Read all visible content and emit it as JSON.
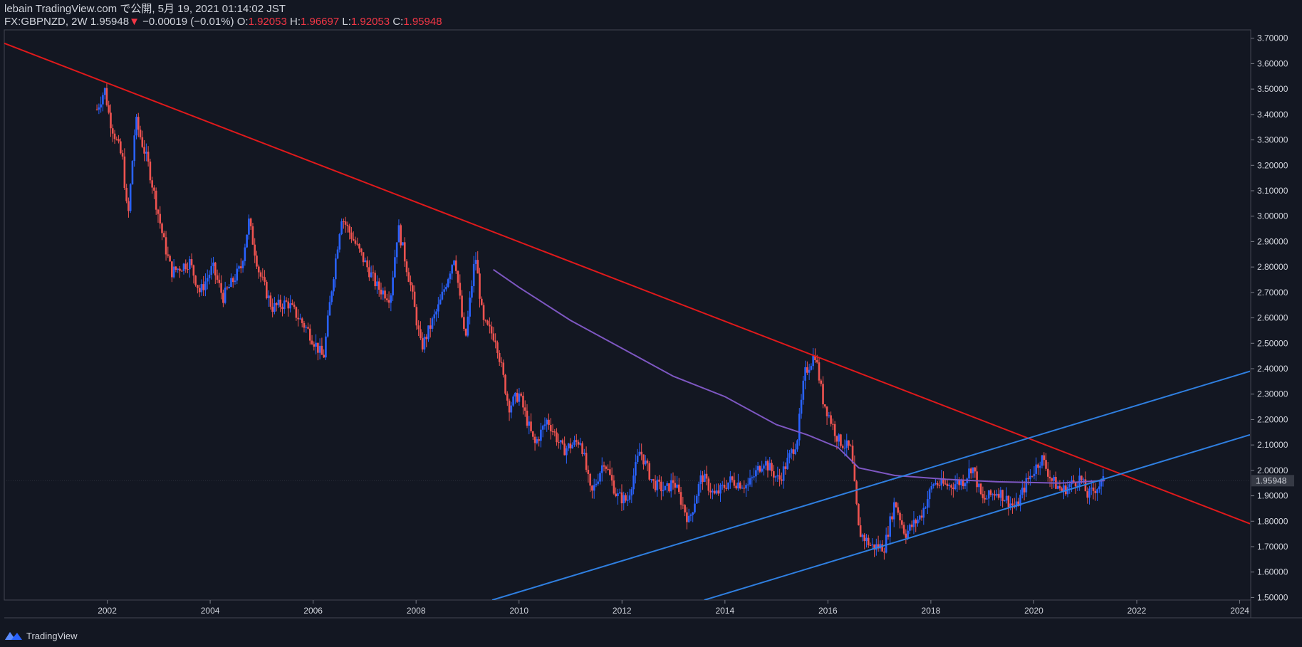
{
  "header": {
    "published": "lebain TradingView.com で公開, 5月 19, 2021 01:14:02 JST",
    "symbol": "FX:GBPNZD, 2W",
    "last": "1.95948",
    "change": "−0.00019 (−0.01%)",
    "o_label": "O:",
    "o_val": "1.92053",
    "h_label": "H:",
    "h_val": "1.96697",
    "l_label": "L:",
    "l_val": "1.92053",
    "c_label": "C:",
    "c_val": "1.95948"
  },
  "footer": {
    "brand": "TradingView"
  },
  "colors": {
    "background": "#131722",
    "up": "#2962ff",
    "down": "#ef5350",
    "downtrend": "#e0191b",
    "channel": "#2f7fe0",
    "ma": "#7e57c2",
    "axis": "#787b86",
    "price_badge": "#363a45"
  },
  "chart_data": {
    "type": "candlestick",
    "symbol": "FX:GBPNZD",
    "interval": "2W",
    "x_ticks": [
      "2002",
      "2004",
      "2006",
      "2008",
      "2010",
      "2012",
      "2014",
      "2016",
      "2018",
      "2020",
      "2022",
      "2024"
    ],
    "x_range": [
      2000.0,
      2024.2
    ],
    "y_ticks": [
      "1.50000",
      "1.60000",
      "1.70000",
      "1.80000",
      "1.90000",
      "2.00000",
      "2.10000",
      "2.20000",
      "2.30000",
      "2.40000",
      "2.50000",
      "2.60000",
      "2.70000",
      "2.80000",
      "2.90000",
      "3.00000",
      "3.10000",
      "3.20000",
      "3.30000",
      "3.40000",
      "3.50000",
      "3.60000",
      "3.70000"
    ],
    "y_range": [
      1.49,
      3.73
    ],
    "last_price": 1.95948,
    "last_price_label": "1.95948",
    "price_anchors": [
      [
        2001.8,
        3.42
      ],
      [
        2001.95,
        3.5
      ],
      [
        2002.05,
        3.38
      ],
      [
        2002.3,
        3.22
      ],
      [
        2002.4,
        2.98
      ],
      [
        2002.55,
        3.38
      ],
      [
        2002.8,
        3.2
      ],
      [
        2003.1,
        2.9
      ],
      [
        2003.25,
        2.78
      ],
      [
        2003.6,
        2.82
      ],
      [
        2003.8,
        2.7
      ],
      [
        2004.05,
        2.8
      ],
      [
        2004.25,
        2.68
      ],
      [
        2004.6,
        2.8
      ],
      [
        2004.75,
        2.98
      ],
      [
        2004.95,
        2.78
      ],
      [
        2005.2,
        2.64
      ],
      [
        2005.5,
        2.66
      ],
      [
        2005.9,
        2.55
      ],
      [
        2006.2,
        2.44
      ],
      [
        2006.35,
        2.7
      ],
      [
        2006.55,
        3.0
      ],
      [
        2006.75,
        2.92
      ],
      [
        2007.0,
        2.82
      ],
      [
        2007.25,
        2.72
      ],
      [
        2007.5,
        2.68
      ],
      [
        2007.65,
        2.96
      ],
      [
        2007.9,
        2.72
      ],
      [
        2008.1,
        2.48
      ],
      [
        2008.45,
        2.65
      ],
      [
        2008.75,
        2.85
      ],
      [
        2008.95,
        2.5
      ],
      [
        2009.15,
        2.85
      ],
      [
        2009.3,
        2.58
      ],
      [
        2009.55,
        2.52
      ],
      [
        2009.8,
        2.25
      ],
      [
        2010.0,
        2.3
      ],
      [
        2010.3,
        2.1
      ],
      [
        2010.55,
        2.2
      ],
      [
        2010.85,
        2.08
      ],
      [
        2011.2,
        2.12
      ],
      [
        2011.4,
        1.9
      ],
      [
        2011.65,
        2.04
      ],
      [
        2011.9,
        1.9
      ],
      [
        2012.1,
        1.88
      ],
      [
        2012.35,
        2.08
      ],
      [
        2012.6,
        1.95
      ],
      [
        2012.85,
        1.92
      ],
      [
        2013.0,
        1.96
      ],
      [
        2013.3,
        1.8
      ],
      [
        2013.55,
        1.98
      ],
      [
        2013.8,
        1.9
      ],
      [
        2014.1,
        1.96
      ],
      [
        2014.45,
        1.94
      ],
      [
        2014.75,
        2.04
      ],
      [
        2015.05,
        1.96
      ],
      [
        2015.4,
        2.12
      ],
      [
        2015.55,
        2.38
      ],
      [
        2015.75,
        2.46
      ],
      [
        2015.9,
        2.28
      ],
      [
        2016.2,
        2.12
      ],
      [
        2016.45,
        2.08
      ],
      [
        2016.6,
        1.76
      ],
      [
        2016.85,
        1.7
      ],
      [
        2017.1,
        1.7
      ],
      [
        2017.3,
        1.88
      ],
      [
        2017.5,
        1.75
      ],
      [
        2017.8,
        1.82
      ],
      [
        2018.05,
        1.95
      ],
      [
        2018.35,
        1.94
      ],
      [
        2018.65,
        1.96
      ],
      [
        2018.8,
        2.02
      ],
      [
        2019.0,
        1.88
      ],
      [
        2019.3,
        1.92
      ],
      [
        2019.65,
        1.85
      ],
      [
        2019.85,
        1.95
      ],
      [
        2020.15,
        2.05
      ],
      [
        2020.35,
        1.96
      ],
      [
        2020.55,
        1.92
      ],
      [
        2020.9,
        1.97
      ],
      [
        2021.05,
        1.9
      ],
      [
        2021.25,
        1.94
      ],
      [
        2021.38,
        1.96
      ]
    ],
    "ma_anchors": [
      [
        2009.5,
        2.79
      ],
      [
        2010.0,
        2.72
      ],
      [
        2011.0,
        2.59
      ],
      [
        2012.0,
        2.48
      ],
      [
        2013.0,
        2.37
      ],
      [
        2014.0,
        2.29
      ],
      [
        2015.0,
        2.18
      ],
      [
        2015.6,
        2.14
      ],
      [
        2016.2,
        2.09
      ],
      [
        2016.6,
        2.01
      ],
      [
        2017.3,
        1.98
      ],
      [
        2018.3,
        1.965
      ],
      [
        2019.3,
        1.955
      ],
      [
        2020.5,
        1.95
      ],
      [
        2021.38,
        1.96
      ]
    ],
    "trendlines": [
      {
        "name": "downtrend",
        "from": [
          2000.0,
          3.68
        ],
        "to": [
          2024.2,
          1.79
        ]
      },
      {
        "name": "channel_upper",
        "from": [
          2009.48,
          1.49
        ],
        "to": [
          2024.2,
          2.39
        ]
      },
      {
        "name": "channel_lower",
        "from": [
          2013.6,
          1.49
        ],
        "to": [
          2024.2,
          2.14
        ]
      }
    ]
  }
}
